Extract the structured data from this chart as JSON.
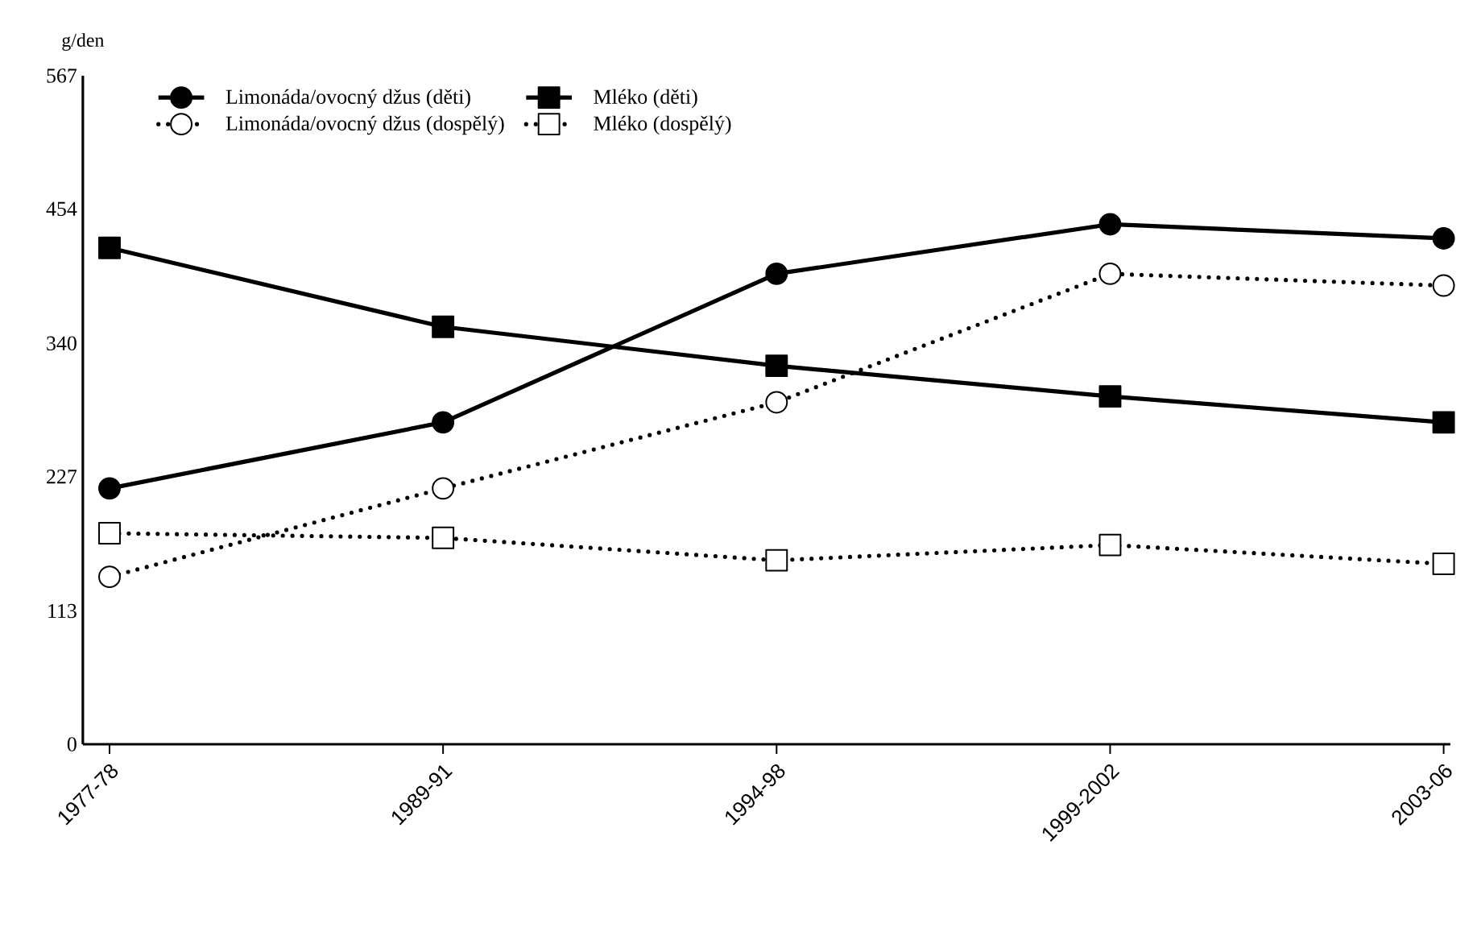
{
  "chart_data": {
    "type": "line",
    "ylabel": "g/den",
    "categories": [
      "1977-78",
      "1989-91",
      "1994-98",
      "1999-2002",
      "2003-06"
    ],
    "ylim": [
      0,
      567
    ],
    "yticks": [
      0,
      113,
      227,
      340,
      454,
      567
    ],
    "legend": "top left",
    "grid": false,
    "series": [
      {
        "name": "Limonáda/ovocný džus (děti)",
        "color": "#000000",
        "marker": "circle",
        "line_style": "solid",
        "values": [
          217,
          273,
          399,
          441,
          429
        ]
      },
      {
        "name": "Mléko (děti)",
        "color": "#000000",
        "marker": "square",
        "line_style": "solid",
        "values": [
          421,
          354,
          321,
          295,
          273
        ]
      },
      {
        "name": "Limonáda/ovocný džus (dospělý)",
        "color": "#000000",
        "marker": "circle",
        "line_style": "dotted",
        "values": [
          142,
          217,
          290,
          399,
          389
        ]
      },
      {
        "name": "Mléko (dospělý)",
        "color": "#000000",
        "marker": "square",
        "line_style": "dotted",
        "values": [
          179,
          175,
          156,
          169,
          153
        ]
      }
    ]
  }
}
